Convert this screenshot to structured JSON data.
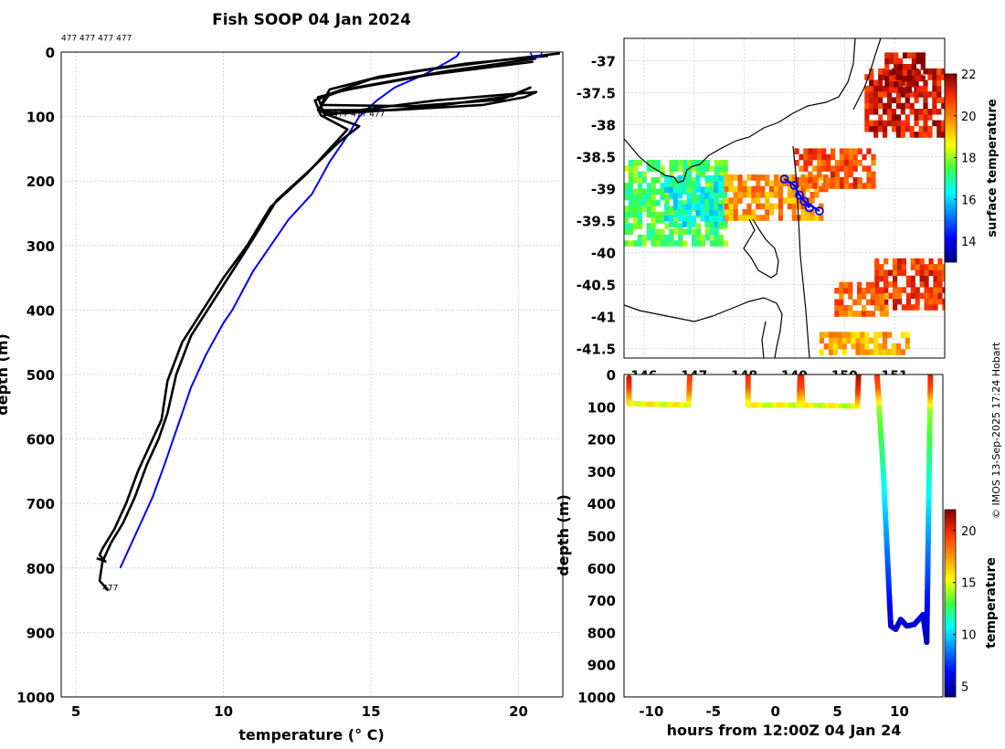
{
  "figure": {
    "title": "Fish SOOP 04 Jan 2024",
    "credit": "© IMOS 13-Sep-2025 17:24 Hobart"
  },
  "chart_data": [
    {
      "type": "line",
      "name": "temperature-depth-profiles",
      "xlabel": "temperature (° C)",
      "ylabel": "depth (m)",
      "xlim": [
        4.5,
        21.5
      ],
      "ylim": [
        1000,
        0
      ],
      "xticks": [
        5,
        10,
        15,
        20
      ],
      "yticks": [
        0,
        100,
        200,
        300,
        400,
        500,
        600,
        700,
        800,
        900,
        1000
      ],
      "grid": true,
      "annotations": [
        {
          "text": "477 477 477 477",
          "x": 4.5,
          "y": -18
        },
        {
          "text": "477 477 477",
          "x": 13.7,
          "y": 100
        },
        {
          "text": "477",
          "x": 5.9,
          "y": 835
        }
      ],
      "series": [
        {
          "name": "climatology",
          "color": "#0000ff",
          "x": [
            18.0,
            17.9,
            17.6,
            16.8,
            15.8,
            15.2,
            14.6,
            14.2,
            13.6,
            13.0,
            12.2,
            11.6,
            11.0,
            10.3,
            10.0,
            9.4,
            8.9,
            8.6,
            8.3,
            8.0,
            7.6,
            7.2,
            6.9,
            6.5
          ],
          "y": [
            0,
            7,
            15,
            35,
            55,
            75,
            100,
            130,
            170,
            220,
            260,
            300,
            340,
            400,
            420,
            470,
            520,
            560,
            600,
            640,
            690,
            730,
            760,
            800
          ]
        },
        {
          "name": "profile-1",
          "color": "#000000",
          "x": [
            20.6,
            17.5,
            14.5,
            13.2,
            13.4,
            14.6,
            13.9,
            13.0,
            11.8,
            11.0,
            10.3,
            9.6,
            8.9,
            8.4,
            8.1,
            7.8,
            7.4,
            7.0,
            6.6,
            6.2,
            5.9,
            5.8,
            6.1
          ],
          "y": [
            10,
            30,
            55,
            70,
            95,
            115,
            140,
            180,
            230,
            290,
            340,
            390,
            440,
            500,
            560,
            600,
            640,
            690,
            730,
            760,
            790,
            820,
            835
          ]
        },
        {
          "name": "profile-2",
          "color": "#000000",
          "x": [
            20.5,
            17.0,
            14.0,
            13.1,
            13.3,
            14.2,
            13.6,
            12.8,
            11.6,
            10.8,
            10.0,
            9.3,
            8.6,
            8.1,
            7.9,
            7.5,
            7.1,
            6.7,
            6.3,
            5.9,
            5.8,
            6.0,
            5.7
          ],
          "y": [
            15,
            35,
            60,
            75,
            98,
            120,
            150,
            190,
            240,
            300,
            350,
            400,
            450,
            510,
            570,
            610,
            650,
            700,
            740,
            770,
            780,
            790,
            785
          ]
        },
        {
          "name": "profile-3",
          "color": "#000000",
          "x": [
            21.4,
            19.5,
            16.8,
            15.0,
            13.6,
            13.2,
            15.8,
            18.8,
            20.2,
            20.6,
            17.2,
            14.6,
            13.4
          ],
          "y": [
            2,
            12,
            28,
            42,
            65,
            90,
            90,
            82,
            70,
            62,
            75,
            90,
            98
          ]
        },
        {
          "name": "profile-4",
          "color": "#000000",
          "x": [
            21.0,
            18.2,
            15.3,
            13.6,
            13.3,
            16.4,
            19.4,
            20.4,
            19.8,
            16.8,
            14.1,
            13.2
          ],
          "y": [
            6,
            18,
            38,
            58,
            82,
            84,
            74,
            55,
            68,
            86,
            95,
            92
          ]
        }
      ],
      "markers": [
        {
          "x": 20.6,
          "y": 0,
          "color": "#0000ff"
        }
      ]
    },
    {
      "type": "heatmap",
      "name": "surface-temperature-map",
      "xlim": [
        145.6,
        152.0
      ],
      "ylim": [
        -41.65,
        -36.65
      ],
      "xticks": [
        146,
        147,
        148,
        149,
        150,
        151
      ],
      "yticks": [
        -37,
        -37.5,
        -38,
        -38.5,
        -39,
        -39.5,
        -40,
        -40.5,
        -41,
        -41.5
      ],
      "ytick_labels": [
        "-37",
        "-37.5",
        "-38",
        "-38.5",
        "-39",
        "-39.5",
        "-40",
        "-40.5",
        "-41",
        "-41.5"
      ],
      "xtick_labels": [
        "146",
        "147",
        "148",
        "149",
        "150",
        "151"
      ],
      "colorbar_label": "surface temperature",
      "colorbar_ticks": [
        14,
        16,
        18,
        20,
        22
      ],
      "colorbar_range": [
        13,
        22
      ],
      "patches": [
        {
          "lon": [
            145.6,
            147.6
          ],
          "lat": [
            -39.9,
            -38.6
          ],
          "value": 17.5
        },
        {
          "lon": [
            146.4,
            147.6
          ],
          "lat": [
            -39.6,
            -38.8
          ],
          "value": 16.5
        },
        {
          "lon": [
            147.6,
            149.6
          ],
          "lat": [
            -39.5,
            -38.8
          ],
          "value": 19.8
        },
        {
          "lon": [
            149.0,
            150.6
          ],
          "lat": [
            -39.0,
            -38.4
          ],
          "value": 20.6
        },
        {
          "lon": [
            150.4,
            152.0
          ],
          "lat": [
            -38.2,
            -37.2
          ],
          "value": 21.3
        },
        {
          "lon": [
            150.8,
            151.6
          ],
          "lat": [
            -37.5,
            -36.9
          ],
          "value": 21.6
        },
        {
          "lon": [
            150.6,
            152.0
          ],
          "lat": [
            -40.9,
            -40.1
          ],
          "value": 20.8
        },
        {
          "lon": [
            149.8,
            150.8
          ],
          "lat": [
            -41.0,
            -40.5
          ],
          "value": 20.2
        },
        {
          "lon": [
            149.5,
            151.3
          ],
          "lat": [
            -41.6,
            -41.3
          ],
          "value": 19.5
        }
      ],
      "track": {
        "color": "#0000ff",
        "lon": [
          148.8,
          149.0,
          149.1,
          149.3,
          149.2,
          149.5
        ],
        "lat": [
          -38.85,
          -38.95,
          -39.1,
          -39.3,
          -39.2,
          -39.35
        ]
      }
    },
    {
      "type": "scatter",
      "name": "depth-time-section",
      "xlabel": "hours from 12:00Z 04 Jan 24",
      "ylabel": "depth (m)",
      "xlim": [
        -12.2,
        13.5
      ],
      "ylim": [
        1000,
        0
      ],
      "xticks": [
        -10,
        -5,
        0,
        5,
        10
      ],
      "xtick_labels": [
        "-10",
        "-5",
        "0",
        "5",
        "10"
      ],
      "yticks": [
        0,
        100,
        200,
        300,
        400,
        500,
        600,
        700,
        800,
        900,
        1000
      ],
      "colorbar_label": "temperature",
      "colorbar_ticks": [
        5,
        10,
        15,
        20
      ],
      "colorbar_range": [
        4,
        22
      ],
      "casts": [
        {
          "hours": [
            -11.8,
            -11.8,
            -7.0,
            -6.9
          ],
          "depth": [
            10,
            90,
            95,
            5
          ]
        },
        {
          "hours": [
            -2.2,
            -2.2,
            1.9,
            2.0
          ],
          "depth": [
            5,
            95,
            95,
            5
          ]
        },
        {
          "hours": [
            2.1,
            2.2,
            6.6,
            6.7
          ],
          "depth": [
            5,
            95,
            98,
            5
          ]
        },
        {
          "hours": [
            8.2,
            8.7,
            9.3,
            9.7,
            10.1,
            10.6,
            11.2,
            11.9,
            12.2,
            12.5
          ],
          "depth": [
            5,
            300,
            780,
            790,
            760,
            780,
            775,
            745,
            830,
            5
          ]
        }
      ]
    }
  ]
}
